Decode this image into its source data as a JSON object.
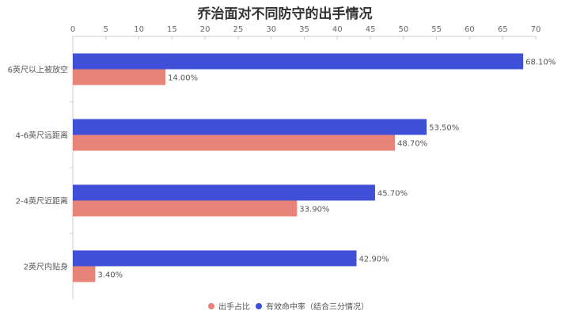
{
  "chart_data": {
    "type": "bar",
    "orientation": "horizontal",
    "title": "乔治面对不同防守的出手情况",
    "categories": [
      "6英尺以上被放空",
      "4-6英尺远距离",
      "2-4英尺近距离",
      "2英尺内贴身"
    ],
    "series": [
      {
        "name": "有效命中率（结合三分情况）",
        "color": "#3f4fd8",
        "values": [
          68.1,
          53.5,
          45.7,
          42.9
        ],
        "labels": [
          "68.10%",
          "53.50%",
          "45.70%",
          "42.90%"
        ]
      },
      {
        "name": "出手占比",
        "color": "#e8837a",
        "values": [
          14.0,
          48.7,
          33.9,
          3.4
        ],
        "labels": [
          "14.00%",
          "48.70%",
          "33.90%",
          "3.40%"
        ]
      }
    ],
    "legend_order": [
      "出手占比",
      "有效命中率（结合三分情况）"
    ],
    "xlim": [
      0,
      70
    ],
    "xticks": [
      "0",
      "5",
      "10",
      "15",
      "20",
      "25",
      "30",
      "35",
      "40",
      "45",
      "50",
      "55",
      "60",
      "65",
      "70"
    ],
    "xaxis_position": "top",
    "legend_position": "bottom-center",
    "grid": false
  }
}
